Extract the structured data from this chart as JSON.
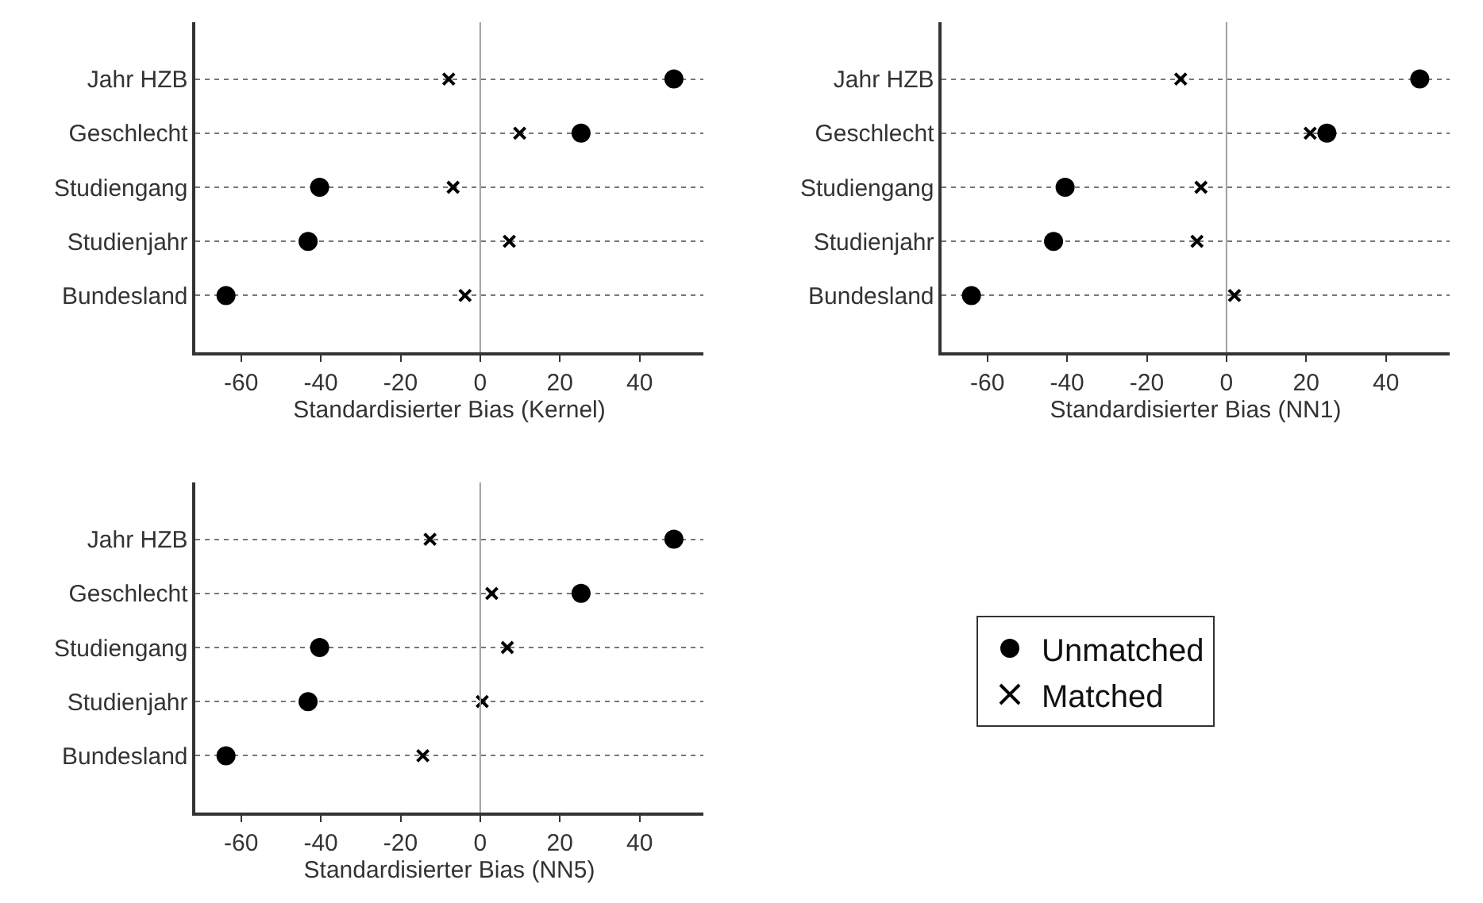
{
  "chart_data": [
    {
      "type": "scatter",
      "orientation": "horizontal",
      "xlabel": "Standardisierter Bias (Kernel)",
      "categories": [
        "Jahr HZB",
        "Geschlecht",
        "Studiengang",
        "Studienjahr",
        "Bundesland"
      ],
      "xlim": [
        -71.5,
        56
      ],
      "xticks": [
        -60,
        -40,
        -20,
        0,
        20,
        40
      ],
      "grid": "y",
      "ref_lines": [
        {
          "axis": "x",
          "value": 0,
          "color": "#a0a0a0"
        }
      ],
      "series": [
        {
          "color": "#000000",
          "marker": "circle",
          "values": [
            48.6,
            25.3,
            -40.3,
            -43.2,
            -63.8
          ]
        },
        {
          "color": "#000000",
          "marker": "cross",
          "values": [
            -7.9,
            9.9,
            -6.8,
            7.3,
            -3.8
          ]
        }
      ]
    },
    {
      "type": "scatter",
      "orientation": "horizontal",
      "xlabel": "Standardisierter Bias (NN1)",
      "categories": [
        "Jahr HZB",
        "Geschlecht",
        "Studiengang",
        "Studienjahr",
        "Bundesland"
      ],
      "xlim": [
        -71.5,
        56
      ],
      "xticks": [
        -60,
        -40,
        -20,
        0,
        20,
        40
      ],
      "grid": "y",
      "ref_lines": [
        {
          "axis": "x",
          "value": 0,
          "color": "#a0a0a0"
        }
      ],
      "series": [
        {
          "color": "#000000",
          "marker": "circle",
          "values": [
            48.5,
            25.2,
            -40.5,
            -43.4,
            -64.0
          ]
        },
        {
          "color": "#000000",
          "marker": "cross",
          "values": [
            -11.5,
            21.0,
            -6.4,
            -7.4,
            2.0
          ]
        }
      ]
    },
    {
      "type": "scatter",
      "orientation": "horizontal",
      "xlabel": "Standardisierter Bias (NN5)",
      "categories": [
        "Jahr HZB",
        "Geschlecht",
        "Studiengang",
        "Studienjahr",
        "Bundesland"
      ],
      "xlim": [
        -71.5,
        56
      ],
      "xticks": [
        -60,
        -40,
        -20,
        0,
        20,
        40
      ],
      "grid": "y",
      "legend": "right",
      "ref_lines": [
        {
          "axis": "x",
          "value": 0,
          "color": "#a0a0a0"
        }
      ],
      "series": [
        {
          "name": "Unmatched",
          "color": "#000000",
          "marker": "circle",
          "values": [
            48.6,
            25.3,
            -40.3,
            -43.2,
            -63.8
          ]
        },
        {
          "name": "Matched",
          "color": "#000000",
          "marker": "cross",
          "values": [
            -12.6,
            2.9,
            6.8,
            0.5,
            -14.4
          ]
        }
      ]
    }
  ]
}
